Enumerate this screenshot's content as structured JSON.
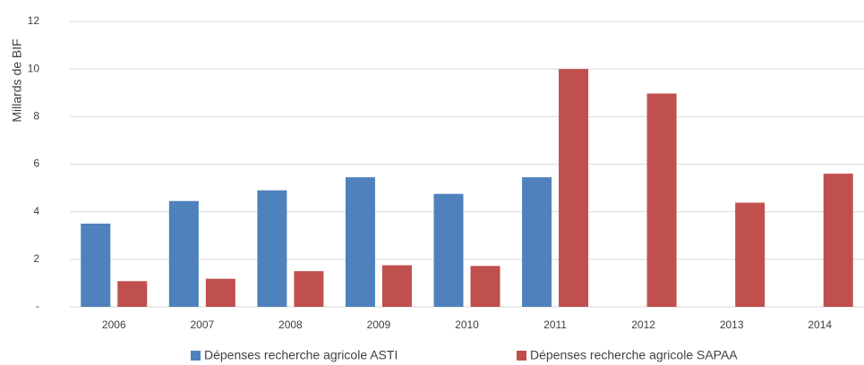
{
  "chart_data": {
    "type": "bar",
    "y_label": "Millards de BIF",
    "categories": [
      "2006",
      "2007",
      "2008",
      "2009",
      "2010",
      "2011",
      "2012",
      "2013",
      "2014"
    ],
    "series": [
      {
        "name": "Dépenses recherche agricole ASTI",
        "color": "#4f81bd",
        "values": [
          3.5,
          4.45,
          4.9,
          5.45,
          4.75,
          5.45,
          null,
          null,
          null
        ]
      },
      {
        "name": "Dépenses recherche agricole SAPAA",
        "color": "#c0504d",
        "values": [
          1.08,
          1.18,
          1.5,
          1.75,
          1.72,
          10.0,
          8.97,
          4.38,
          5.6
        ]
      }
    ],
    "ylim": [
      0,
      12
    ],
    "yticks": [
      {
        "value": 0,
        "label": "-"
      },
      2,
      4,
      6,
      8,
      10,
      12
    ],
    "grid": true,
    "legend": "bottom"
  }
}
